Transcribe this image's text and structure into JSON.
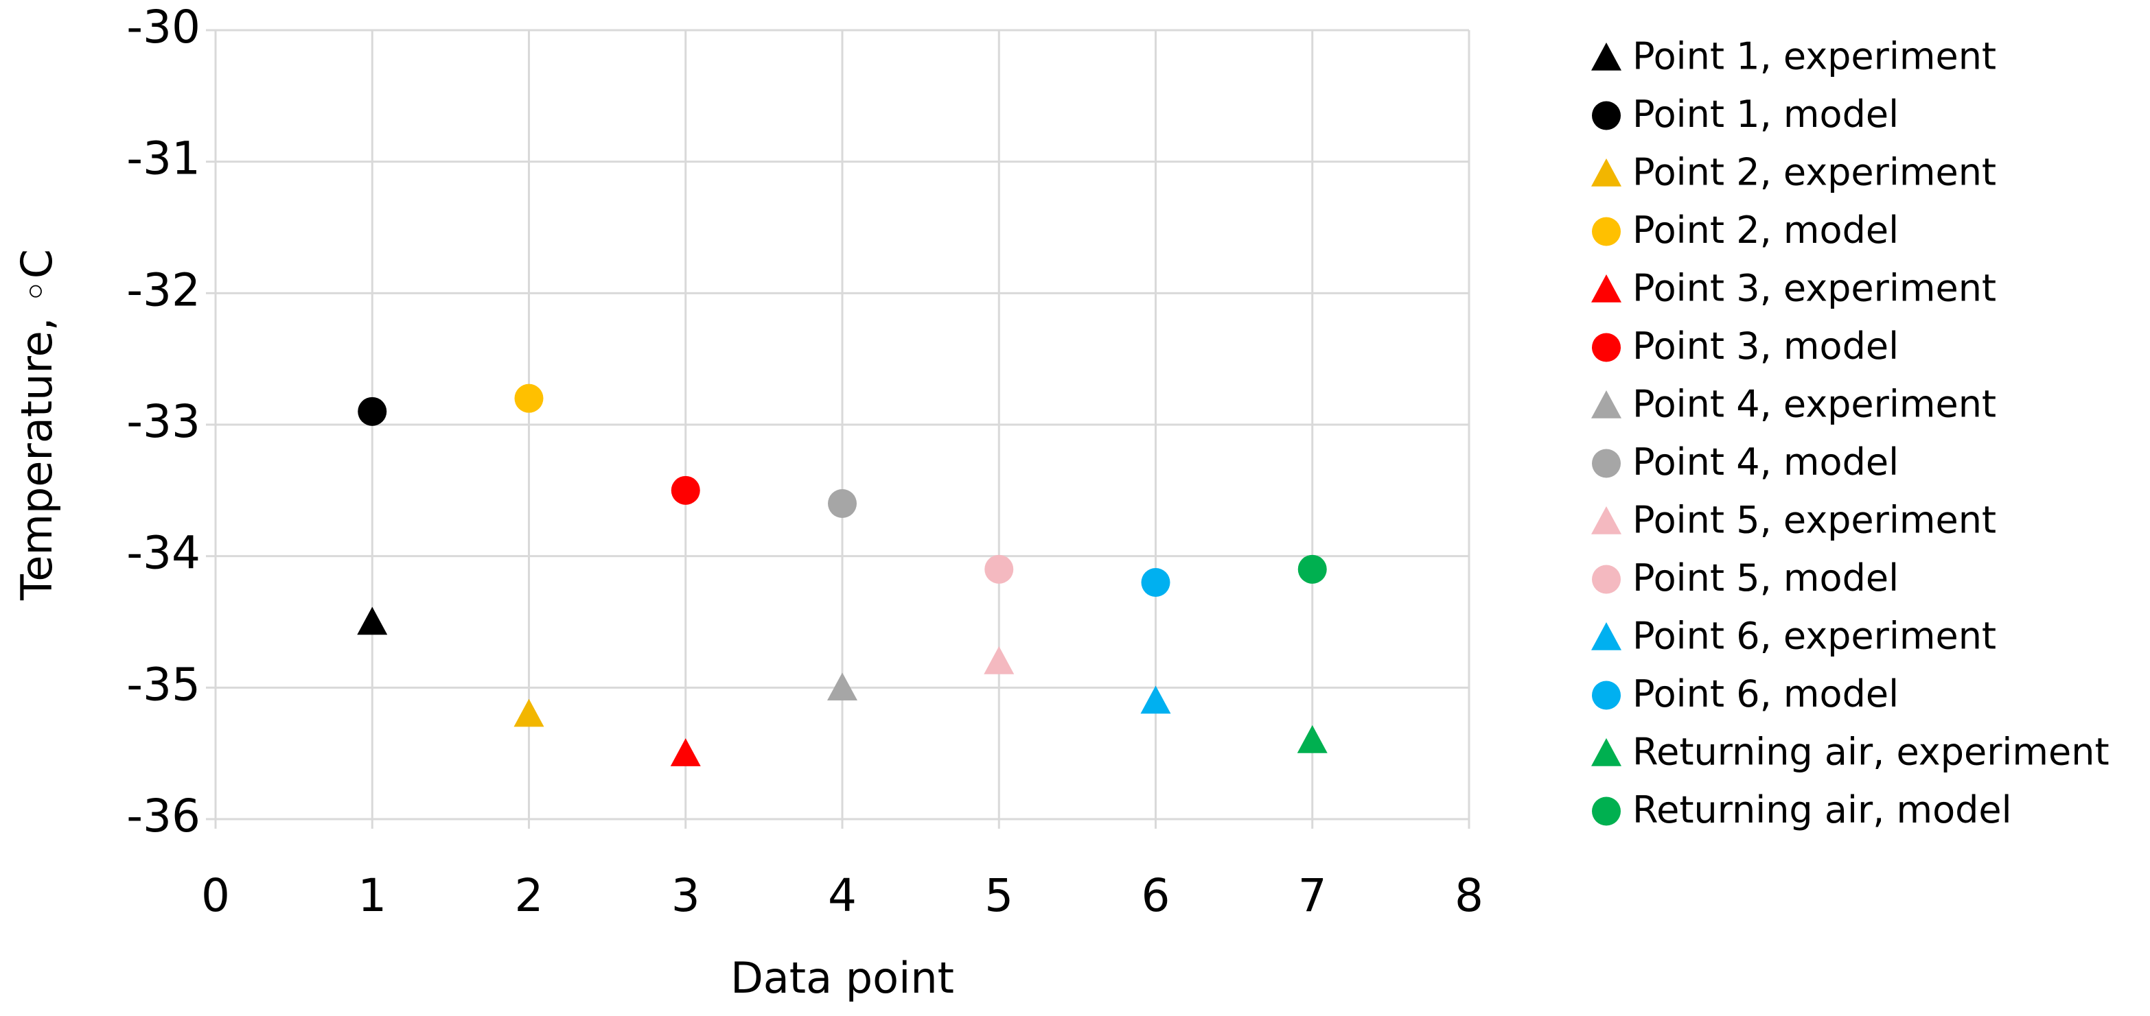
{
  "chart_data": {
    "type": "scatter",
    "x_label": "Data point",
    "y_label": "Temperature, ◦C",
    "xlim": [
      0,
      8
    ],
    "xticks": [
      0,
      1,
      2,
      3,
      4,
      5,
      6,
      7,
      8
    ],
    "ylim": [
      -36,
      -30
    ],
    "yticks": [
      -36,
      -35,
      -34,
      -33,
      -32,
      -31,
      -30
    ],
    "grid": true,
    "legend": "right",
    "series": [
      {
        "name": "Point 1, experiment",
        "color": "#000000",
        "marker": "triangle",
        "x": [
          1
        ],
        "values": [
          -34.5
        ]
      },
      {
        "name": "Point 1, model",
        "color": "#000000",
        "marker": "circle",
        "x": [
          1
        ],
        "values": [
          -32.9
        ]
      },
      {
        "name": "Point 2, experiment",
        "color": "#f2b600",
        "marker": "triangle",
        "x": [
          2
        ],
        "values": [
          -35.2
        ]
      },
      {
        "name": "Point 2, model",
        "color": "#ffc000",
        "marker": "circle",
        "x": [
          2
        ],
        "values": [
          -32.8
        ]
      },
      {
        "name": "Point 3, experiment",
        "color": "#ff0000",
        "marker": "triangle",
        "x": [
          3
        ],
        "values": [
          -35.5
        ]
      },
      {
        "name": "Point 3, model",
        "color": "#ff0000",
        "marker": "circle",
        "x": [
          3
        ],
        "values": [
          -33.5
        ]
      },
      {
        "name": "Point 4, experiment",
        "color": "#a6a6a6",
        "marker": "triangle",
        "x": [
          4
        ],
        "values": [
          -35.0
        ]
      },
      {
        "name": "Point 4, model",
        "color": "#a6a6a6",
        "marker": "circle",
        "x": [
          4
        ],
        "values": [
          -33.6
        ]
      },
      {
        "name": "Point 5, experiment",
        "color": "#f4b9c0",
        "marker": "triangle",
        "x": [
          5
        ],
        "values": [
          -34.8
        ]
      },
      {
        "name": "Point 5, model",
        "color": "#f4b9c0",
        "marker": "circle",
        "x": [
          5
        ],
        "values": [
          -34.1
        ]
      },
      {
        "name": "Point 6, experiment",
        "color": "#00b0f0",
        "marker": "triangle",
        "x": [
          6
        ],
        "values": [
          -35.1
        ]
      },
      {
        "name": "Point 6, model",
        "color": "#00b0f0",
        "marker": "circle",
        "x": [
          6
        ],
        "values": [
          -34.2
        ]
      },
      {
        "name": "Returning air, experiment",
        "color": "#00b050",
        "marker": "triangle",
        "x": [
          7
        ],
        "values": [
          -35.4
        ]
      },
      {
        "name": "Returning air, model",
        "color": "#00b050",
        "marker": "circle",
        "x": [
          7
        ],
        "values": [
          -34.1
        ]
      }
    ]
  }
}
